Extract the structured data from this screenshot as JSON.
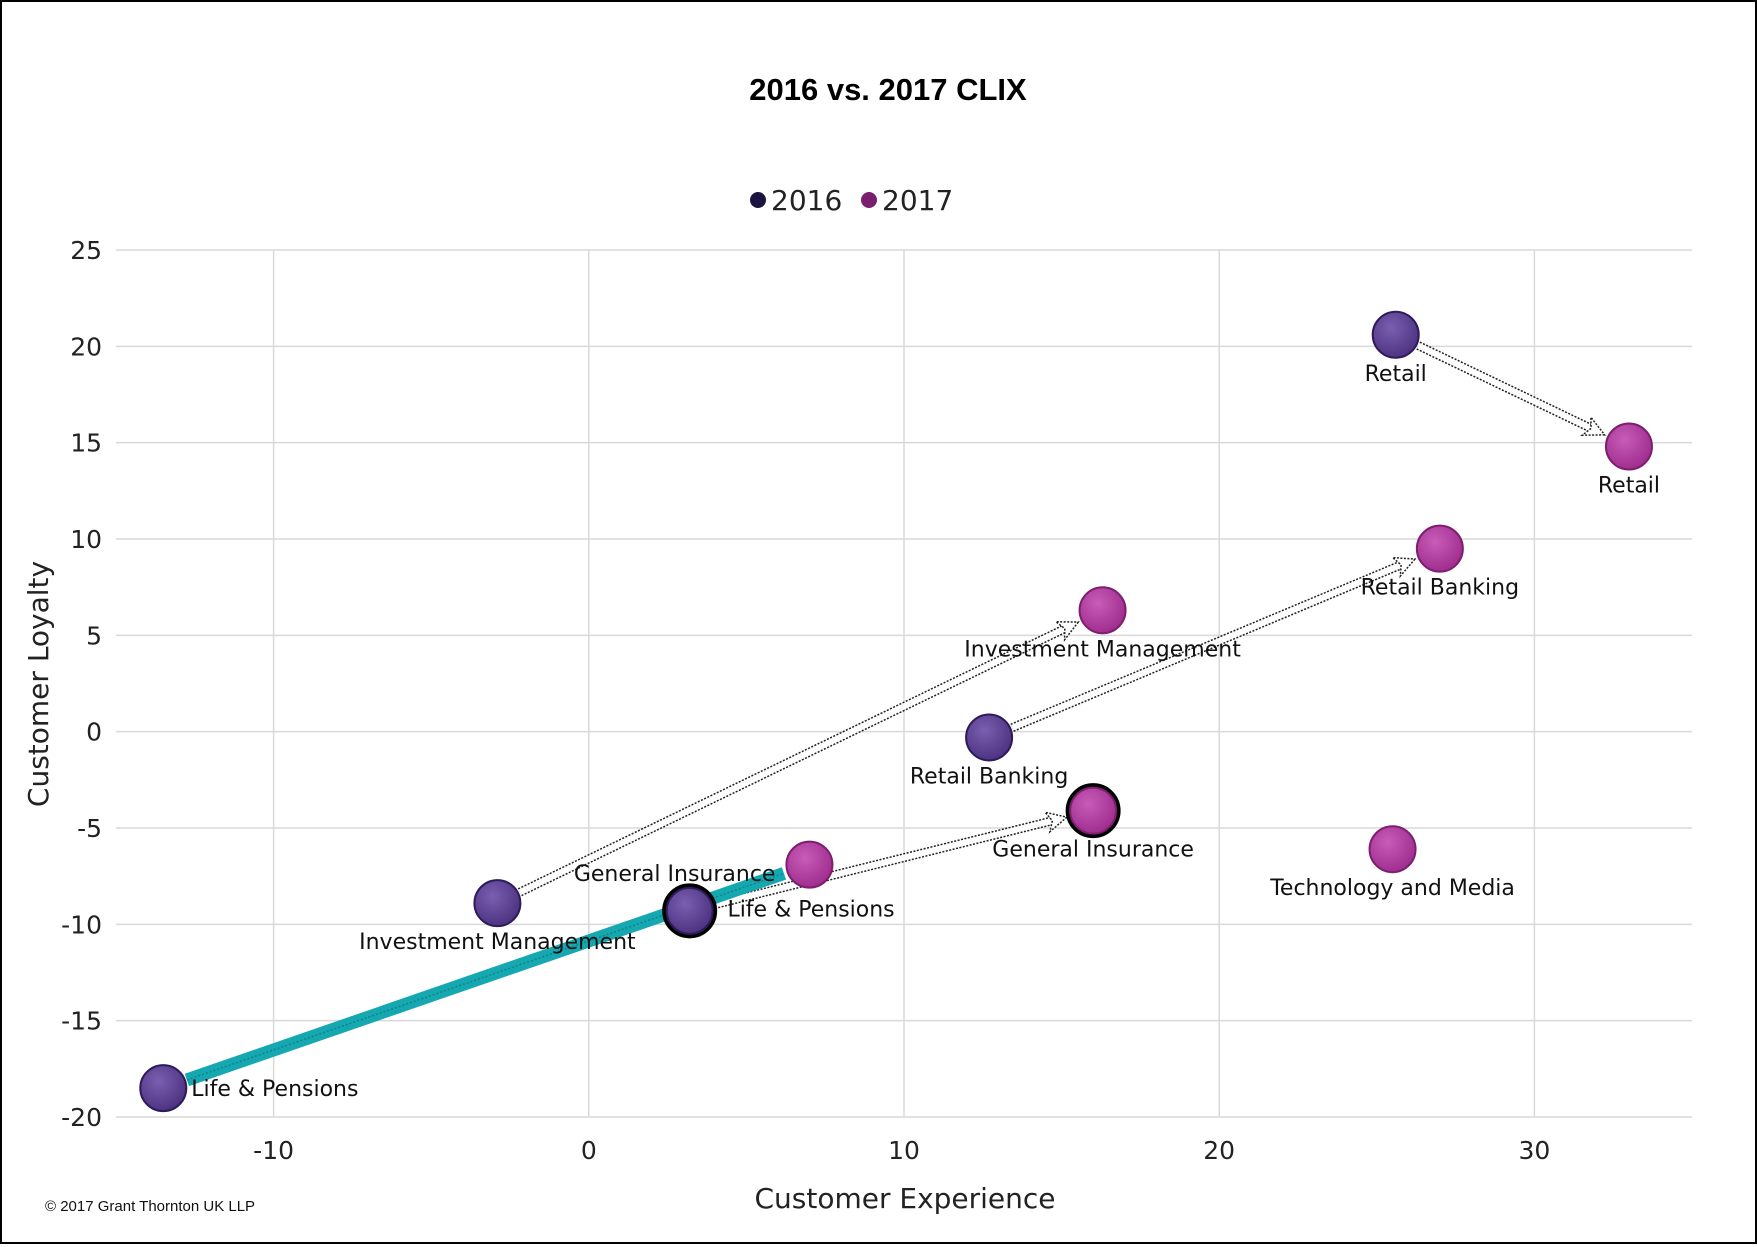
{
  "chart_data": {
    "type": "scatter",
    "title": "2016 vs. 2017 CLIX",
    "xlabel": "Customer Experience",
    "ylabel": "Customer Loyalty",
    "xlim": [
      -15,
      35
    ],
    "ylim": [
      -20,
      25
    ],
    "xticks": [
      -10,
      0,
      10,
      20,
      30
    ],
    "yticks": [
      -20,
      -15,
      -10,
      -5,
      0,
      5,
      10,
      15,
      20,
      25
    ],
    "grid": true,
    "legend_position": "top-center",
    "series": [
      {
        "name": "2016",
        "legend_color": "#1c1440",
        "color": "#5d4191",
        "points": [
          {
            "label": "Retail",
            "x": 25.6,
            "y": 20.6
          },
          {
            "label": "Retail Banking",
            "x": 12.7,
            "y": -0.3
          },
          {
            "label": "Investment Management",
            "x": -2.9,
            "y": -8.9
          },
          {
            "label": "General Insurance",
            "x": 3.2,
            "y": -9.3,
            "highlight": true
          },
          {
            "label": "Life & Pensions",
            "x": -13.5,
            "y": -18.5
          }
        ]
      },
      {
        "name": "2017",
        "legend_color": "#7a1f6e",
        "color": "#b4399f",
        "points": [
          {
            "label": "Retail",
            "x": 33.0,
            "y": 14.8
          },
          {
            "label": "Retail Banking",
            "x": 27.0,
            "y": 9.5
          },
          {
            "label": "Investment Management",
            "x": 16.3,
            "y": 6.3
          },
          {
            "label": "General Insurance",
            "x": 16.0,
            "y": -4.1,
            "highlight": true
          },
          {
            "label": "Life & Pensions",
            "x": 7.0,
            "y": -6.9
          },
          {
            "label": "Technology and Media",
            "x": 25.5,
            "y": -6.1
          }
        ]
      }
    ],
    "arrows": [
      {
        "from": [
          25.6,
          20.6
        ],
        "to": [
          33.0,
          14.8
        ],
        "style": "outline"
      },
      {
        "from": [
          12.7,
          -0.3
        ],
        "to": [
          27.0,
          9.5
        ],
        "style": "outline"
      },
      {
        "from": [
          -2.9,
          -8.9
        ],
        "to": [
          16.3,
          6.3
        ],
        "style": "outline"
      },
      {
        "from": [
          3.2,
          -9.3
        ],
        "to": [
          16.0,
          -4.1
        ],
        "style": "outline"
      },
      {
        "from": [
          -13.5,
          -18.5
        ],
        "to": [
          7.0,
          -6.9
        ],
        "style": "solid",
        "color": "#15a8b0"
      }
    ]
  },
  "copyright": "© 2017 Grant Thornton UK LLP"
}
